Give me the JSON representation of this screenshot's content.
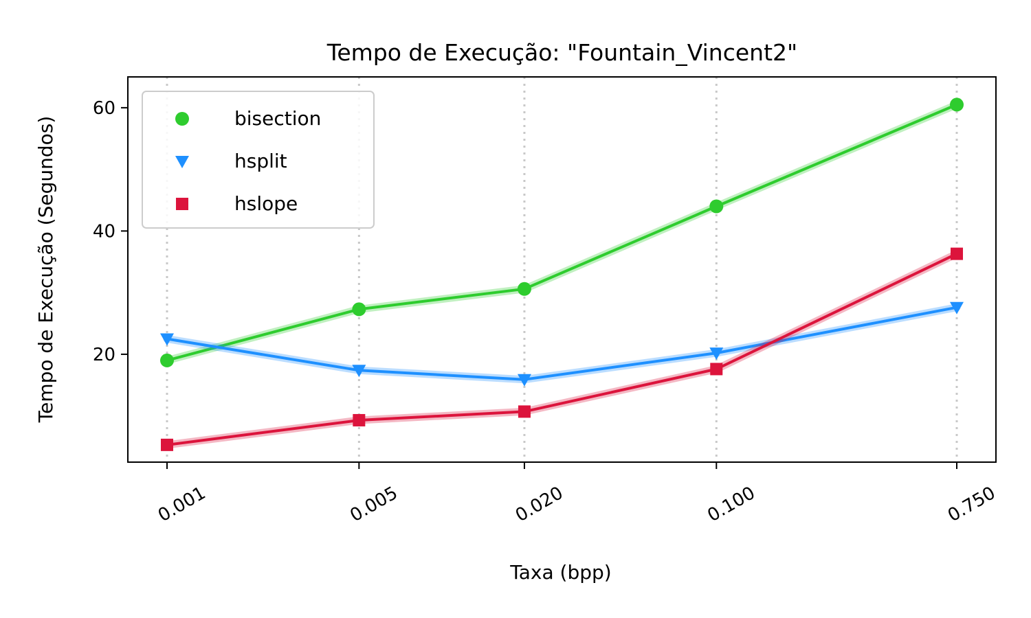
{
  "chart_data": {
    "type": "line",
    "title": "Tempo de Execução: \"Fountain_Vincent2\"",
    "xlabel": "Taxa (bpp)",
    "ylabel": "Tempo de Execução (Segundos)",
    "categories": [
      "0.001",
      "0.005",
      "0.020",
      "0.100",
      "0.750"
    ],
    "x_scale": "log",
    "x_values": [
      0.001,
      0.005,
      0.02,
      0.1,
      0.75
    ],
    "ylim": [
      2.5,
      65
    ],
    "yticks": [
      20,
      40,
      60
    ],
    "grid": "vertical dotted at x ticks",
    "legend_position": "top-left",
    "series": [
      {
        "name": "bisection",
        "color": "#2ECC2E",
        "marker": "circle",
        "values": [
          19.0,
          27.3,
          30.6,
          44.0,
          60.5
        ]
      },
      {
        "name": "hsplit",
        "color": "#1E90FF",
        "marker": "triangle-down",
        "values": [
          22.5,
          17.4,
          15.9,
          20.2,
          27.6
        ]
      },
      {
        "name": "hslope",
        "color": "#DC143C",
        "marker": "square",
        "values": [
          5.3,
          9.3,
          10.7,
          17.6,
          36.3
        ]
      }
    ]
  }
}
